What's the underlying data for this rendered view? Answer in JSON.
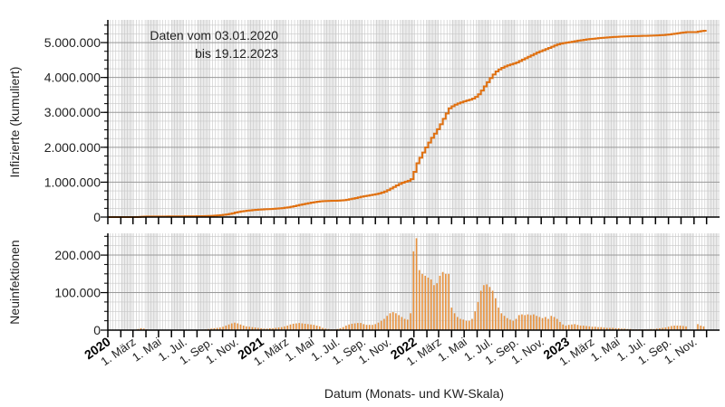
{
  "chart_data": [
    {
      "type": "line",
      "ylabel": "Infizierte (kumuliert)",
      "annotation": [
        "Daten vom 03.01.2020",
        "bis 19.12.2023"
      ],
      "ylim": [
        0,
        5650000
      ],
      "y_ticks": [
        0,
        1000000,
        2000000,
        3000000,
        4000000,
        5000000
      ],
      "y_tick_labels": [
        "0",
        "1.000.000",
        "2.000.000",
        "3.000.000",
        "4.000.000",
        "5.000.000"
      ],
      "grid": true,
      "color": "#e07010",
      "values_note_source": "cumulative sum of weekly new infections"
    },
    {
      "type": "bar",
      "ylabel": "Neuinfektionen",
      "ylim": [
        0,
        258000
      ],
      "y_ticks": [
        0,
        100000,
        200000
      ],
      "y_tick_labels": [
        "0",
        "100.000",
        "200.000"
      ],
      "grid": true,
      "color": "#e8913c",
      "start_date": "2020-01-03",
      "end_date": "2023-12-19",
      "weekly_new_infections_thousands": {
        "2020": [
          0,
          0,
          0,
          0,
          0,
          0,
          0,
          0,
          0.1,
          1,
          3,
          5,
          4,
          2,
          1,
          0.5,
          0.3,
          0.3,
          0.3,
          0.3,
          0.3,
          0.3,
          0.3,
          0.4,
          0.5,
          0.7,
          0.8,
          0.8,
          0.8,
          0.9,
          1,
          1.2,
          1.5,
          2,
          3,
          4,
          5,
          6,
          7,
          9,
          12,
          15,
          18,
          20,
          18,
          15,
          12,
          10,
          9,
          8,
          7,
          6
        ],
        "2021": [
          5,
          4,
          4,
          5,
          5,
          6,
          7,
          8,
          10,
          12,
          15,
          17,
          18,
          19,
          18,
          17,
          16,
          15,
          14,
          12,
          10,
          6,
          4,
          3,
          2,
          2,
          3,
          5,
          8,
          12,
          15,
          17,
          18,
          19,
          19,
          16,
          14,
          14,
          14,
          16,
          20,
          25,
          30,
          38,
          45,
          48,
          45,
          40,
          35,
          30,
          28,
          45
        ],
        "2022": [
          210,
          245,
          160,
          150,
          145,
          140,
          135,
          120,
          125,
          145,
          155,
          150,
          150,
          60,
          45,
          35,
          30,
          28,
          25,
          25,
          30,
          50,
          75,
          105,
          120,
          122,
          115,
          105,
          85,
          60,
          45,
          38,
          32,
          28,
          25,
          30,
          40,
          42,
          40,
          42,
          40,
          42,
          38,
          35,
          32,
          35,
          30,
          38,
          35,
          30,
          22,
          15
        ],
        "2023": [
          12,
          14,
          15,
          16,
          14,
          12,
          12,
          11,
          10,
          9,
          9,
          8,
          8,
          7,
          6,
          6,
          6,
          5,
          5,
          4,
          4,
          3,
          3,
          2,
          2,
          2,
          2,
          2,
          2,
          3,
          3,
          4,
          5,
          6,
          7,
          9,
          11,
          12,
          12,
          12,
          11,
          10,
          0,
          0,
          0,
          16,
          12,
          10
        ]
      }
    }
  ],
  "x_axis": {
    "title": "Datum (Monats- und KW-Skala)",
    "years": [
      "2020",
      "2021",
      "2022",
      "2023"
    ],
    "month_labels": [
      "1. März",
      "1. Mai",
      "1. Jul.",
      "1. Sep.",
      "1. Nov."
    ]
  }
}
